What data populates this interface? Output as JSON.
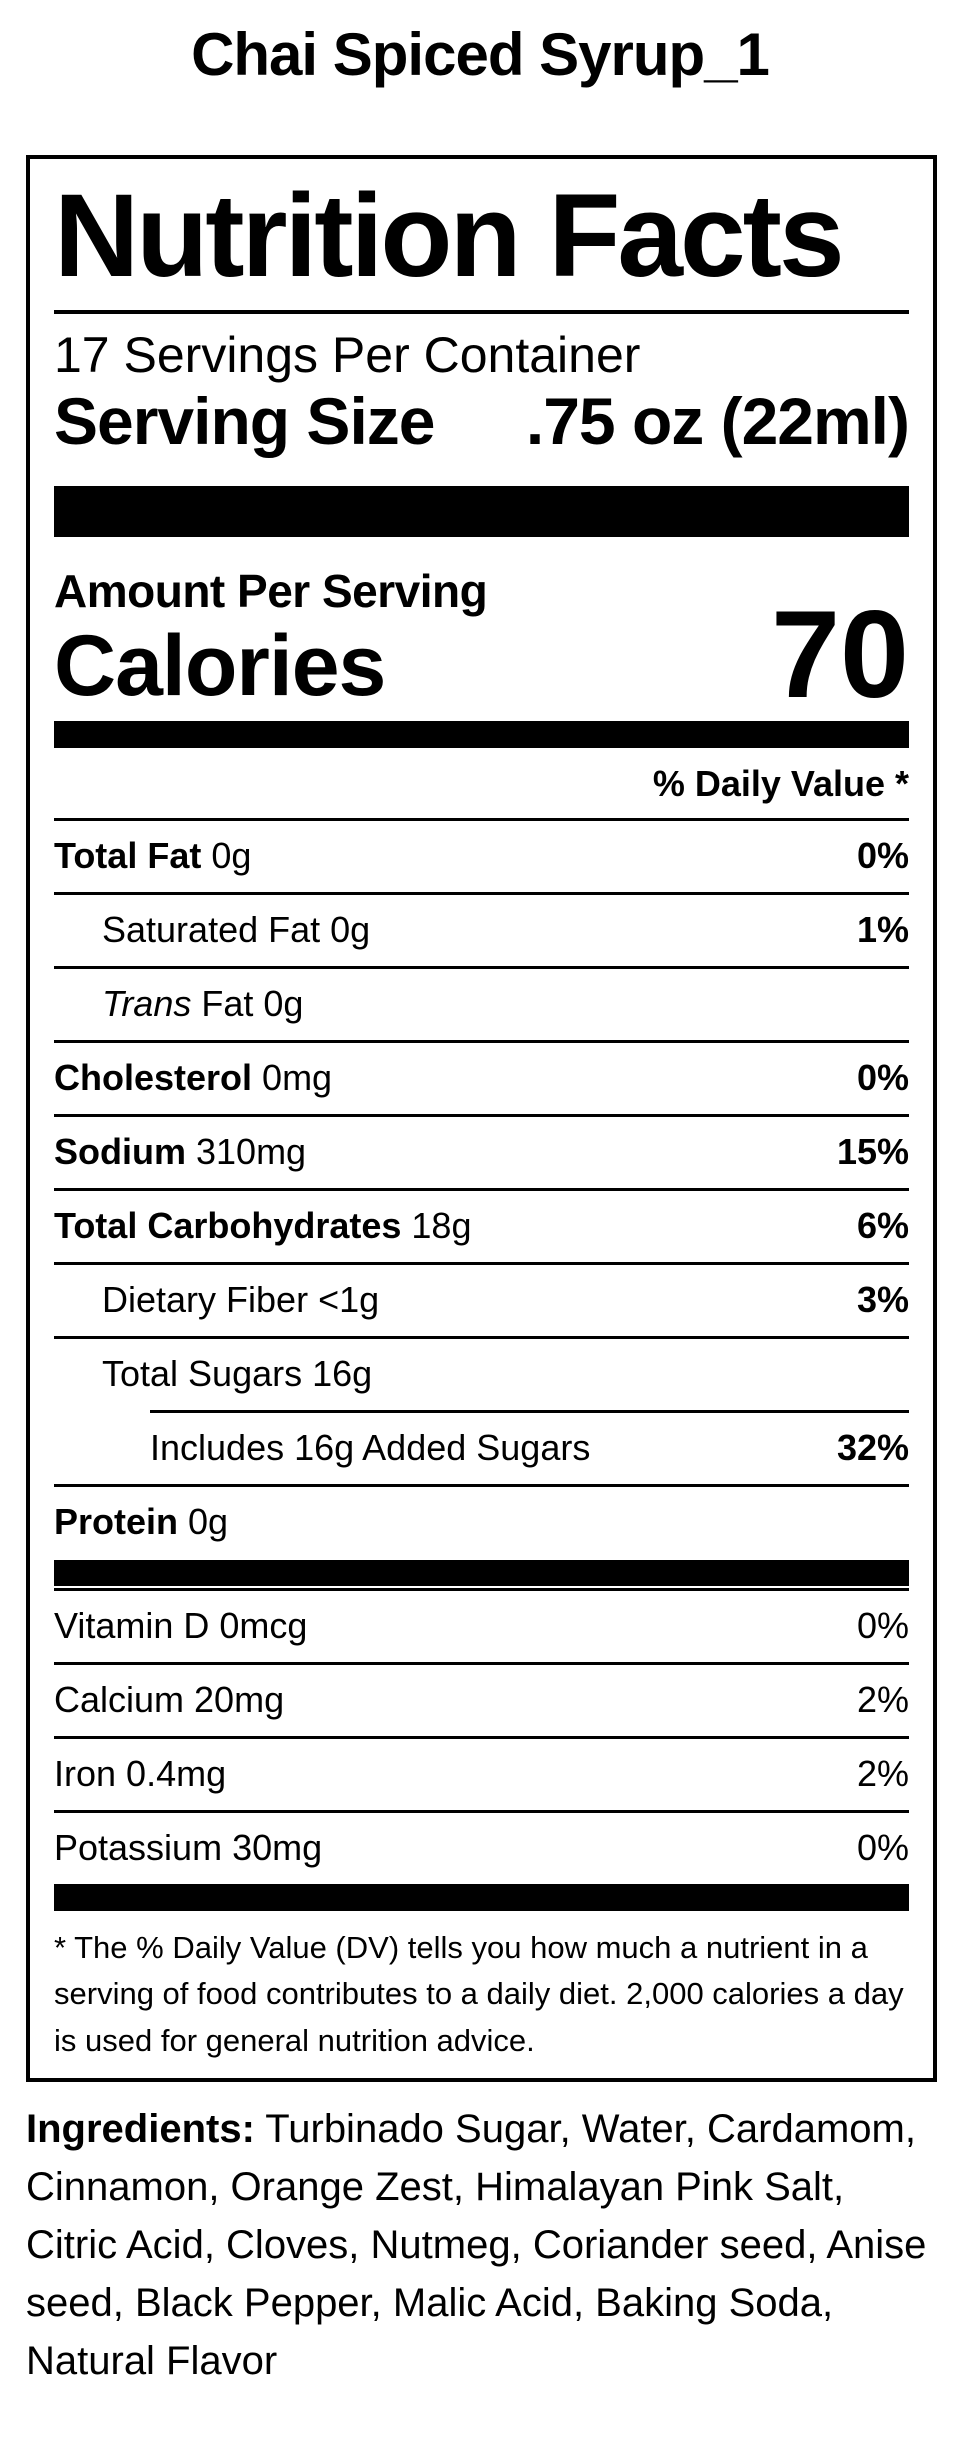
{
  "page_title": "Chai Spiced Syrup_1",
  "colors": {
    "text": "#000000",
    "background": "#ffffff"
  },
  "label": {
    "heading": "Nutrition Facts",
    "servings_per_container": "17 Servings Per Container",
    "serving_size_label": "Serving Size",
    "serving_size_value": ".75 oz (22ml)",
    "amount_per_serving": "Amount Per Serving",
    "calories_label": "Calories",
    "calories_value": "70",
    "daily_value_header": "% Daily Value *",
    "rows": [
      {
        "name": "Total Fat",
        "amount": "0g",
        "dv": "0%",
        "style": "bold",
        "dv_bold": true,
        "indent": 0,
        "divider": "full"
      },
      {
        "name": "Saturated Fat",
        "amount": "0g",
        "dv": "1%",
        "style": "regular",
        "dv_bold": true,
        "indent": 1,
        "divider": "full"
      },
      {
        "name": "Trans",
        "amount": "Fat 0g",
        "dv": "",
        "style": "italic",
        "dv_bold": false,
        "indent": 1,
        "divider": "full"
      },
      {
        "name": "Cholesterol",
        "amount": "0mg",
        "dv": "0%",
        "style": "bold",
        "dv_bold": true,
        "indent": 0,
        "divider": "full"
      },
      {
        "name": "Sodium",
        "amount": "310mg",
        "dv": "15%",
        "style": "bold",
        "dv_bold": true,
        "indent": 0,
        "divider": "full"
      },
      {
        "name": "Total Carbohydrates",
        "amount": "18g",
        "dv": "6%",
        "style": "bold",
        "dv_bold": true,
        "indent": 0,
        "divider": "full"
      },
      {
        "name": "Dietary Fiber",
        "amount": "<1g",
        "dv": "3%",
        "style": "regular",
        "dv_bold": true,
        "indent": 1,
        "divider": "full"
      },
      {
        "name": "Total Sugars",
        "amount": "16g",
        "dv": "",
        "style": "regular",
        "dv_bold": false,
        "indent": 1,
        "divider": "full"
      },
      {
        "name": "Includes 16g Added Sugars",
        "amount": "",
        "dv": "32%",
        "style": "regular",
        "dv_bold": true,
        "indent": 2,
        "divider": "indent"
      },
      {
        "name": "Protein",
        "amount": "0g",
        "dv": "",
        "style": "bold",
        "dv_bold": false,
        "indent": 0,
        "divider": "full"
      }
    ],
    "vitamin_rows": [
      {
        "name": "Vitamin D",
        "amount": "0mcg",
        "dv": "0%",
        "style": "regular",
        "dv_bold": false,
        "indent": 0,
        "divider": "none"
      },
      {
        "name": "Calcium",
        "amount": "20mg",
        "dv": "2%",
        "style": "regular",
        "dv_bold": false,
        "indent": 0,
        "divider": "full"
      },
      {
        "name": "Iron",
        "amount": "0.4mg",
        "dv": "2%",
        "style": "regular",
        "dv_bold": false,
        "indent": 0,
        "divider": "full"
      },
      {
        "name": "Potassium",
        "amount": "30mg",
        "dv": "0%",
        "style": "regular",
        "dv_bold": false,
        "indent": 0,
        "divider": "full"
      }
    ],
    "footnote": "* The % Daily Value (DV) tells you how much a nutrient in a serving of food contributes to a daily diet. 2,000 calories a day is used for general nutrition advice."
  },
  "ingredients": {
    "label": "Ingredients:",
    "text": "Turbinado Sugar, Water, Cardamom, Cinnamon, Orange Zest, Himalayan Pink Salt, Citric Acid, Cloves, Nutmeg, Coriander seed, Anise seed, Black Pepper, Malic Acid, Baking Soda, Natural Flavor"
  }
}
